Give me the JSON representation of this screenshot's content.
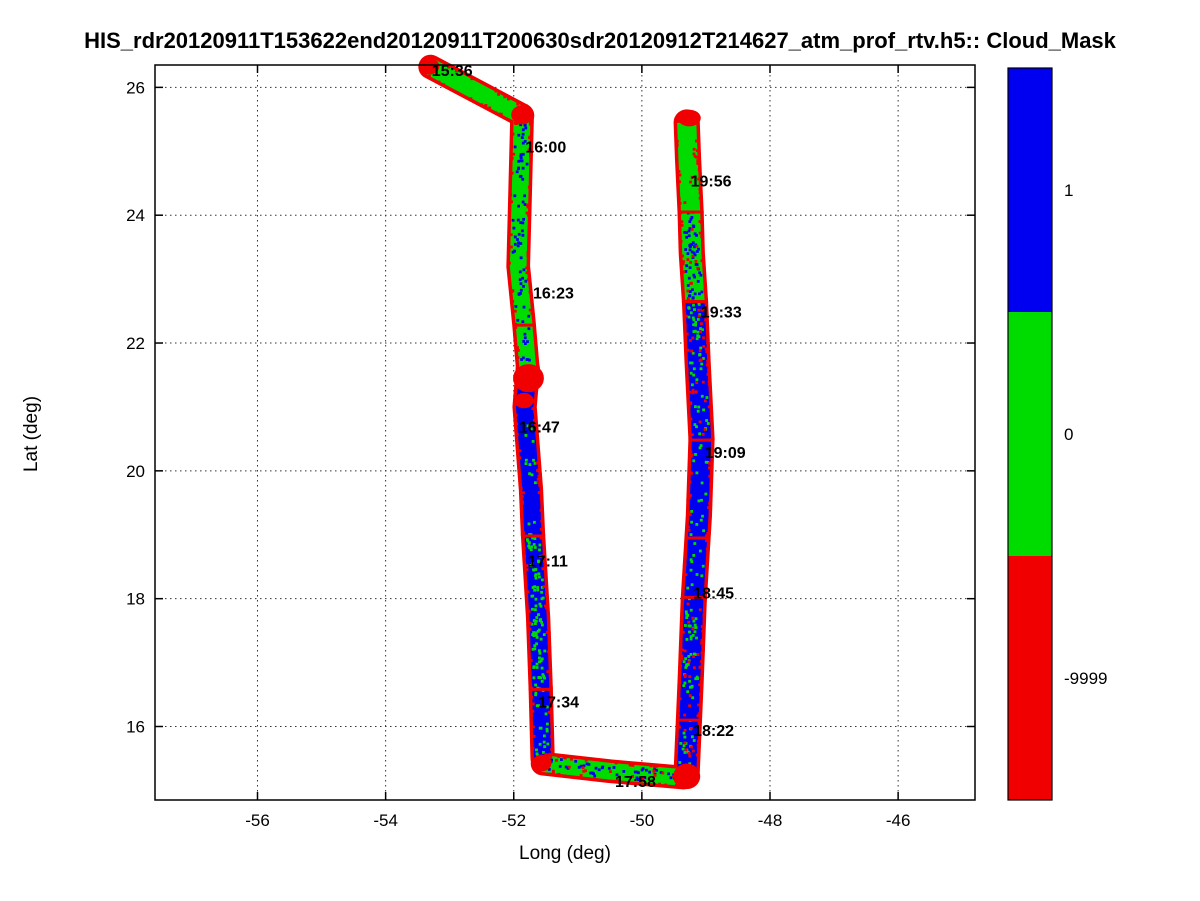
{
  "title": "HIS_rdr20120911T153622end20120911T200630sdr20120912T214627_atm_prof_rtv.h5:: Cloud_Mask",
  "axes": {
    "xlabel": "Long (deg)",
    "ylabel": "Lat (deg)",
    "xlim": [
      -57.6,
      -44.8
    ],
    "ylim": [
      14.85,
      26.35
    ],
    "xticks": [
      -56,
      -54,
      -52,
      -50,
      -48,
      -46
    ],
    "yticks": [
      16,
      18,
      20,
      22,
      24,
      26
    ],
    "grid": "dotted"
  },
  "colorbar": {
    "segments": [
      {
        "label": "1",
        "value": 1
      },
      {
        "label": "0",
        "value": 0
      },
      {
        "label": "-9999",
        "value": -9999
      }
    ]
  },
  "chart_data": {
    "type": "scatter",
    "title": "HIS_rdr20120911T153622end20120911T200630sdr20120912T214627_atm_prof_rtv.h5:: Cloud_Mask",
    "xlabel": "Long (deg)",
    "ylabel": "Lat (deg)",
    "xlim": [
      -57.6,
      -44.8
    ],
    "ylim": [
      14.85,
      26.35
    ],
    "description": "Aircraft flight track in longitude/latitude colored by Cloud_Mask value: 1 = cloud (blue), 0 = clear (green), -9999 = missing (red). Track starts 15:36 at upper left, flies SE then south along ~-51.8 deg lon, east along ~15.4 deg lat, then north along ~-49.2 deg lon ending 19:56 near 25.5 deg lat.",
    "value_colors": {
      "1": "#0000f0",
      "0": "#00db00",
      "-9999": "#f00000"
    },
    "track_legs": [
      {
        "points": [
          [
            -53.3,
            26.32
          ],
          [
            -51.87,
            25.56
          ]
        ],
        "width_deg": 0.27,
        "value": 0,
        "speckles": []
      },
      {
        "points": [
          [
            -51.87,
            25.56
          ],
          [
            -51.9,
            24.4
          ],
          [
            -51.93,
            23.2
          ],
          [
            -51.84,
            22.3
          ],
          [
            -51.78,
            21.6
          ]
        ],
        "width_deg": 0.26,
        "value": 0,
        "speckles": [
          {
            "value": 1,
            "density": 0.3
          }
        ]
      },
      {
        "points": [
          [
            -51.78,
            21.6
          ],
          [
            -51.83,
            21.0
          ],
          [
            -51.73,
            19.7
          ],
          [
            -51.7,
            19.0
          ]
        ],
        "width_deg": 0.27,
        "value": 1,
        "speckles": [
          {
            "value": 0,
            "density": 0.12
          }
        ]
      },
      {
        "points": [
          [
            -51.7,
            19.0
          ],
          [
            -51.62,
            17.7
          ],
          [
            -51.58,
            16.6
          ]
        ],
        "width_deg": 0.27,
        "value": 1,
        "speckles": [
          {
            "value": 0,
            "density": 0.55
          }
        ]
      },
      {
        "points": [
          [
            -51.58,
            16.6
          ],
          [
            -51.55,
            15.5
          ]
        ],
        "width_deg": 0.27,
        "value": 1,
        "speckles": [
          {
            "value": 0,
            "density": 0.3
          }
        ]
      },
      {
        "points": [
          [
            -51.55,
            15.42
          ],
          [
            -50.5,
            15.3
          ],
          [
            -49.35,
            15.2
          ]
        ],
        "width_deg": 0.26,
        "value": 0,
        "speckles": [
          {
            "value": 1,
            "density": 0.35
          },
          {
            "value": -9999,
            "density": 0.1
          }
        ]
      },
      {
        "points": [
          [
            -49.3,
            15.3
          ],
          [
            -49.24,
            16.7
          ],
          [
            -49.19,
            18.0
          ]
        ],
        "width_deg": 0.3,
        "value": 1,
        "speckles": [
          {
            "value": 0,
            "density": 0.3
          },
          {
            "value": -9999,
            "density": 0.12
          }
        ]
      },
      {
        "points": [
          [
            -49.19,
            18.0
          ],
          [
            -49.11,
            19.3
          ],
          [
            -49.07,
            20.5
          ]
        ],
        "width_deg": 0.3,
        "value": 1,
        "speckles": [
          {
            "value": 0,
            "density": 0.15
          }
        ]
      },
      {
        "points": [
          [
            -49.07,
            20.5
          ],
          [
            -49.13,
            21.7
          ],
          [
            -49.17,
            22.65
          ]
        ],
        "width_deg": 0.3,
        "value": 1,
        "speckles": [
          {
            "value": 0,
            "density": 0.3
          },
          {
            "value": -9999,
            "density": 0.15
          }
        ]
      },
      {
        "points": [
          [
            -49.17,
            22.65
          ],
          [
            -49.22,
            23.4
          ],
          [
            -49.24,
            24.05
          ]
        ],
        "width_deg": 0.3,
        "value": 0,
        "speckles": [
          {
            "value": 1,
            "density": 0.5
          },
          {
            "value": -9999,
            "density": 0.12
          }
        ]
      },
      {
        "points": [
          [
            -49.24,
            24.05
          ],
          [
            -49.28,
            24.9
          ],
          [
            -49.3,
            25.45
          ]
        ],
        "width_deg": 0.3,
        "value": 0,
        "speckles": [
          {
            "value": -9999,
            "density": 0.06
          }
        ]
      }
    ],
    "turn_marks": [
      {
        "lon": -53.32,
        "lat": 26.33,
        "rx": 0.16,
        "ry": 0.13
      },
      {
        "lon": -51.87,
        "lat": 25.57,
        "rx": 0.17,
        "ry": 0.15
      },
      {
        "lon": -51.77,
        "lat": 21.45,
        "rx": 0.24,
        "ry": 0.22
      },
      {
        "lon": -51.84,
        "lat": 21.1,
        "rx": 0.15,
        "ry": 0.12
      },
      {
        "lon": -51.56,
        "lat": 15.43,
        "rx": 0.15,
        "ry": 0.13
      },
      {
        "lon": -49.3,
        "lat": 15.22,
        "rx": 0.21,
        "ry": 0.2
      },
      {
        "lon": -49.26,
        "lat": 25.52,
        "rx": 0.18,
        "ry": 0.13
      }
    ],
    "cross_ticks": [
      {
        "lon": -51.85,
        "lat": 22.28,
        "half_deg": 0.16
      },
      {
        "lon": -51.7,
        "lat": 18.98,
        "half_deg": 0.16
      },
      {
        "lon": -51.58,
        "lat": 16.58,
        "half_deg": 0.16
      },
      {
        "lon": -49.27,
        "lat": 16.1,
        "half_deg": 0.18
      },
      {
        "lon": -49.19,
        "lat": 18.02,
        "half_deg": 0.18
      },
      {
        "lon": -49.11,
        "lat": 18.95,
        "half_deg": 0.18
      },
      {
        "lon": -49.07,
        "lat": 20.48,
        "half_deg": 0.18
      },
      {
        "lon": -49.17,
        "lat": 22.65,
        "half_deg": 0.18
      },
      {
        "lon": -49.24,
        "lat": 24.05,
        "half_deg": 0.18
      }
    ],
    "time_labels": [
      {
        "label": "15:36",
        "lon": -53.28,
        "lat": 26.18
      },
      {
        "label": "16:00",
        "lon": -51.82,
        "lat": 24.98
      },
      {
        "label": "16:23",
        "lon": -51.7,
        "lat": 22.7
      },
      {
        "label": "16:47",
        "lon": -51.92,
        "lat": 20.6
      },
      {
        "label": "17:11",
        "lon": -51.78,
        "lat": 18.5
      },
      {
        "label": "17:34",
        "lon": -51.62,
        "lat": 16.3
      },
      {
        "label": "17:58",
        "lon": -50.42,
        "lat": 15.05
      },
      {
        "label": "18:22",
        "lon": -49.2,
        "lat": 15.85
      },
      {
        "label": "18:45",
        "lon": -49.2,
        "lat": 18.0
      },
      {
        "label": "19:09",
        "lon": -49.02,
        "lat": 20.2
      },
      {
        "label": "19:33",
        "lon": -49.08,
        "lat": 22.4
      },
      {
        "label": "19:56",
        "lon": -49.24,
        "lat": 24.45
      }
    ]
  }
}
